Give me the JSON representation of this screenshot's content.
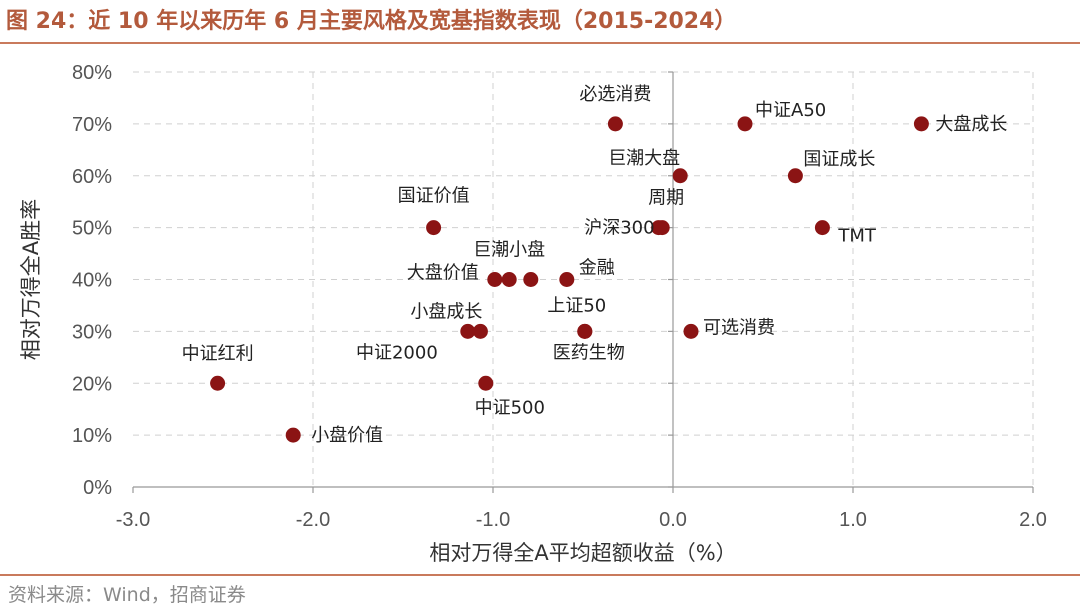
{
  "header": {
    "title": "图 24：近 10 年以来历年 6 月主要风格及宽基指数表现（2015-2024）"
  },
  "footer": {
    "source": "资料来源：Wind，招商证券"
  },
  "colors": {
    "title": "#b35a3c",
    "rule": "#c97a5c",
    "marker": "#8b1414",
    "grid": "#d0d0d0"
  },
  "chart_data": {
    "type": "scatter",
    "title": "",
    "xlabel": "相对万得全A平均超额收益（%）",
    "ylabel": "相对万得全A胜率",
    "xlim": [
      -3.0,
      2.0
    ],
    "ylim": [
      0,
      80
    ],
    "x_ticks": [
      "-3.0",
      "-2.0",
      "-1.0",
      "0.0",
      "1.0",
      "2.0"
    ],
    "y_ticks": [
      "0%",
      "10%",
      "20%",
      "30%",
      "40%",
      "50%",
      "60%",
      "70%",
      "80%"
    ],
    "grid": true,
    "points": [
      {
        "label": "必选消费",
        "x": -0.32,
        "y": 70
      },
      {
        "label": "中证A50",
        "x": 0.4,
        "y": 70
      },
      {
        "label": "大盘成长",
        "x": 1.38,
        "y": 70
      },
      {
        "label": "巨潮大盘",
        "x": 0.04,
        "y": 60
      },
      {
        "label": "国证成长",
        "x": 0.68,
        "y": 60
      },
      {
        "label": "周期",
        "x": -0.06,
        "y": 50
      },
      {
        "label": "沪深300",
        "x": -0.08,
        "y": 50
      },
      {
        "label": "TMT",
        "x": 0.83,
        "y": 50
      },
      {
        "label": "国证价值",
        "x": -1.33,
        "y": 50
      },
      {
        "label": "大盘价值",
        "x": -0.99,
        "y": 40
      },
      {
        "label": "巨潮小盘",
        "x": -0.91,
        "y": 40
      },
      {
        "label": "",
        "x": -0.79,
        "y": 40
      },
      {
        "label": "金融",
        "x": -0.59,
        "y": 40
      },
      {
        "label": "小盘成长",
        "x": -1.07,
        "y": 30
      },
      {
        "label": "中证2000",
        "x": -1.14,
        "y": 30
      },
      {
        "label": "上证50",
        "x": -0.49,
        "y": 30
      },
      {
        "label": "医药生物",
        "x": -0.49,
        "y": 30
      },
      {
        "label": "可选消费",
        "x": 0.1,
        "y": 30
      },
      {
        "label": "中证红利",
        "x": -2.53,
        "y": 20
      },
      {
        "label": "中证500",
        "x": -1.04,
        "y": 20
      },
      {
        "label": "小盘价值",
        "x": -2.11,
        "y": 10
      }
    ]
  }
}
